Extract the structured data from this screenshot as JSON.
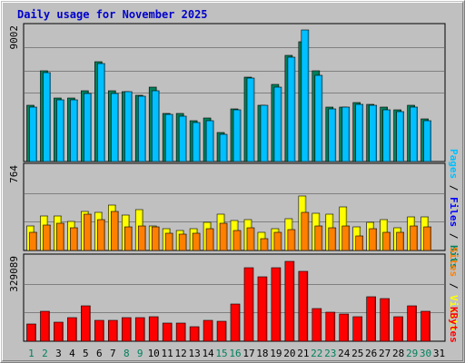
{
  "title": "Daily usage for November 2025",
  "colors": {
    "hits": "#00805c",
    "files": "#00c0ff",
    "sites": "#ff8000",
    "visits": "#ffff00",
    "kbytes": "#ff0000",
    "weekend_day": "#00805c",
    "weekday_day": "#000000",
    "panel_bg": "#c0c0c0"
  },
  "chart_data": [
    {
      "type": "bar",
      "panel": "hits-files-pages",
      "categories": [
        "1",
        "2",
        "3",
        "4",
        "5",
        "6",
        "7",
        "8",
        "9",
        "10",
        "11",
        "12",
        "13",
        "14",
        "15",
        "16",
        "17",
        "18",
        "19",
        "20",
        "21",
        "22",
        "23",
        "24",
        "25",
        "26",
        "27",
        "28",
        "29",
        "30",
        "31"
      ],
      "weekend_days": [
        "1",
        "2",
        "8",
        "9",
        "15",
        "16",
        "22",
        "23",
        "29",
        "30"
      ],
      "axis_max_label": "9002",
      "ylim": [
        0,
        9002
      ],
      "side_labels": [
        "Pages",
        "/",
        "Files",
        "/",
        "Hits"
      ],
      "series": [
        {
          "name": "Hits",
          "values": [
            3700,
            6000,
            4200,
            4200,
            4700,
            6600,
            4700,
            4600,
            4400,
            4900,
            3200,
            3200,
            2700,
            2900,
            1900,
            3500,
            5600,
            3700,
            5100,
            7000,
            7900,
            6000,
            3600,
            3600,
            3900,
            3800,
            3600,
            3400,
            3700,
            2800,
            0
          ]
        },
        {
          "name": "Files",
          "values": [
            3600,
            5900,
            4100,
            4100,
            4500,
            6500,
            4500,
            4600,
            4300,
            4700,
            3100,
            3000,
            2600,
            2700,
            1800,
            3400,
            5500,
            3700,
            4900,
            6900,
            8700,
            5700,
            3500,
            3600,
            3800,
            3700,
            3400,
            3300,
            3600,
            2700,
            0
          ]
        }
      ]
    },
    {
      "type": "bar",
      "panel": "sites-visits",
      "axis_max_label": "764",
      "ylim": [
        0,
        764
      ],
      "side_labels": [
        "Sites",
        "/",
        "Visits"
      ],
      "series": [
        {
          "name": "Visits",
          "values": [
            216,
            306,
            311,
            263,
            346,
            339,
            408,
            317,
            368,
            223,
            192,
            181,
            192,
            253,
            328,
            267,
            273,
            164,
            195,
            282,
            487,
            336,
            328,
            393,
            211,
            253,
            276,
            204,
            297,
            298,
            0
          ]
        },
        {
          "name": "Sites",
          "values": [
            166,
            230,
            247,
            206,
            322,
            278,
            352,
            214,
            223,
            209,
            155,
            150,
            155,
            198,
            247,
            180,
            200,
            106,
            159,
            183,
            340,
            222,
            205,
            216,
            129,
            196,
            166,
            159,
            220,
            213,
            0
          ]
        }
      ]
    },
    {
      "type": "bar",
      "panel": "kbytes",
      "axis_max_label": "329089",
      "ylim": [
        0,
        329089
      ],
      "side_labels": [
        "KBytes"
      ],
      "series": [
        {
          "name": "KBytes",
          "values": [
            65000,
            117000,
            75000,
            90000,
            135000,
            82000,
            82000,
            90000,
            90000,
            93000,
            70000,
            70000,
            56000,
            80000,
            77000,
            143000,
            282000,
            250000,
            282000,
            308000,
            268000,
            127000,
            112000,
            104000,
            93000,
            170000,
            165000,
            93000,
            137000,
            115000,
            0
          ]
        }
      ]
    }
  ]
}
